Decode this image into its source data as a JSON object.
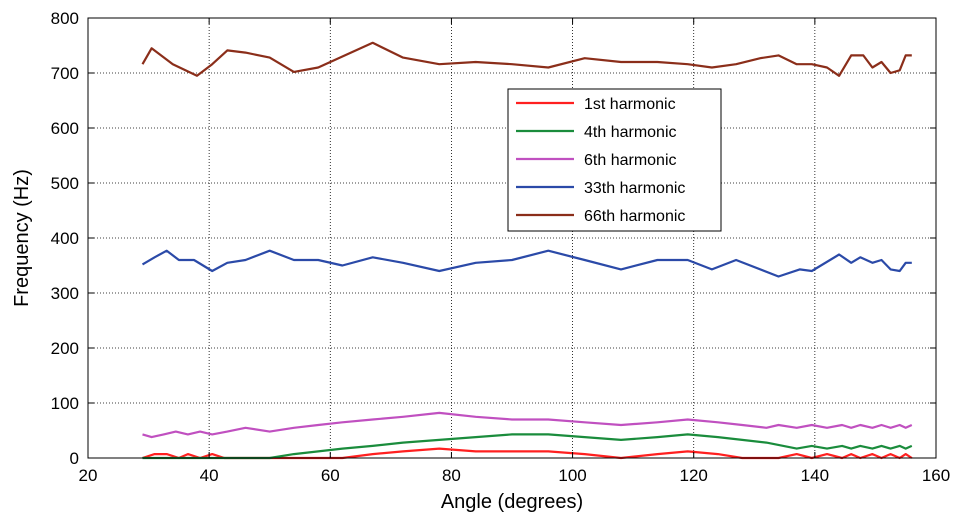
{
  "chart_data": {
    "type": "line",
    "title": "",
    "xlabel": "Angle (degrees)",
    "ylabel": "Frequency (Hz)",
    "xlim": [
      20,
      160
    ],
    "ylim": [
      0,
      800
    ],
    "xticks": [
      "20",
      "40",
      "60",
      "80",
      "100",
      "120",
      "140",
      "160"
    ],
    "yticks": [
      "0",
      "100",
      "200",
      "300",
      "400",
      "500",
      "600",
      "700",
      "800"
    ],
    "grid": true,
    "legend_position": "upper-right-center",
    "series": [
      {
        "name": "1st harmonic",
        "color": "#ff2020",
        "x": [
          29,
          31,
          33,
          35,
          36.5,
          38.5,
          40.5,
          42.5,
          44,
          50,
          54,
          58,
          62,
          67,
          72,
          78,
          84,
          90,
          96,
          102,
          108,
          114,
          119,
          124,
          128,
          134,
          137,
          139.5,
          142,
          144.5,
          146,
          147.5,
          149.5,
          151,
          152.5,
          154,
          155,
          156
        ],
        "y": [
          0,
          7,
          7,
          0,
          7,
          0,
          7,
          0,
          0,
          0,
          0,
          0,
          0,
          7,
          12,
          17,
          12,
          12,
          12,
          7,
          0,
          7,
          12,
          7,
          0,
          0,
          7,
          0,
          7,
          0,
          7,
          0,
          7,
          0,
          7,
          0,
          7,
          0
        ]
      },
      {
        "name": "4th harmonic",
        "color": "#1a8c3c",
        "x": [
          29,
          31,
          33,
          35,
          38,
          40.5,
          43,
          46,
          50,
          54,
          58,
          62,
          67,
          72,
          78,
          84,
          90,
          96,
          102,
          108,
          114,
          119,
          124,
          128,
          132,
          137,
          139.5,
          142,
          144.5,
          146,
          147.5,
          149.5,
          151,
          152.5,
          154,
          155,
          156
        ],
        "y": [
          0,
          0,
          0,
          0,
          0,
          0,
          0,
          0,
          0,
          7,
          12,
          17,
          22,
          28,
          33,
          38,
          43,
          43,
          38,
          33,
          38,
          43,
          38,
          33,
          28,
          17,
          22,
          17,
          22,
          17,
          22,
          17,
          22,
          17,
          22,
          17,
          22
        ]
      },
      {
        "name": "6th harmonic",
        "color": "#c050c0",
        "x": [
          29,
          30.5,
          32.5,
          34.5,
          36.5,
          38.5,
          40.5,
          43,
          46,
          50,
          54,
          58,
          62,
          67,
          72,
          78,
          84,
          90,
          96,
          102,
          108,
          114,
          119,
          124,
          128,
          132,
          134,
          137,
          139.5,
          142,
          144.5,
          146,
          147.5,
          149.5,
          151,
          152.5,
          154,
          155,
          156
        ],
        "y": [
          43,
          38,
          43,
          48,
          43,
          48,
          43,
          48,
          55,
          48,
          55,
          60,
          65,
          70,
          75,
          82,
          75,
          70,
          70,
          65,
          60,
          65,
          70,
          65,
          60,
          55,
          60,
          55,
          60,
          55,
          60,
          55,
          60,
          55,
          60,
          55,
          60,
          55,
          60
        ]
      },
      {
        "name": "33th harmonic",
        "color": "#2b4aa8",
        "x": [
          29,
          31,
          33,
          35,
          37.5,
          40.5,
          43,
          46,
          50,
          54,
          58,
          62,
          67,
          72,
          78,
          84,
          90,
          96,
          102,
          108,
          114,
          119,
          123,
          127,
          134,
          137.5,
          139.5,
          144,
          146,
          147.5,
          149.5,
          151,
          152.5,
          154,
          155,
          156
        ],
        "y": [
          352,
          365,
          377,
          360,
          360,
          340,
          355,
          360,
          377,
          360,
          360,
          350,
          365,
          355,
          340,
          355,
          360,
          377,
          360,
          343,
          360,
          360,
          343,
          360,
          330,
          343,
          340,
          370,
          355,
          365,
          355,
          360,
          343,
          340,
          355,
          355
        ]
      },
      {
        "name": "66th harmonic",
        "color": "#8b2e1a",
        "x": [
          29,
          30.5,
          34,
          38,
          40.5,
          43,
          46,
          50,
          54,
          58,
          62,
          67,
          72,
          78,
          84,
          90,
          96,
          102,
          108,
          114,
          119,
          123,
          127,
          131,
          134,
          137,
          139.5,
          142,
          144,
          146,
          148,
          149.5,
          151,
          152.5,
          154,
          155,
          156
        ],
        "y": [
          716,
          745,
          716,
          695,
          716,
          741,
          737,
          728,
          702,
          710,
          730,
          755,
          728,
          716,
          720,
          716,
          710,
          727,
          720,
          720,
          716,
          710,
          716,
          727,
          732,
          716,
          716,
          710,
          695,
          732,
          732,
          710,
          720,
          700,
          705,
          732,
          732
        ]
      }
    ]
  }
}
